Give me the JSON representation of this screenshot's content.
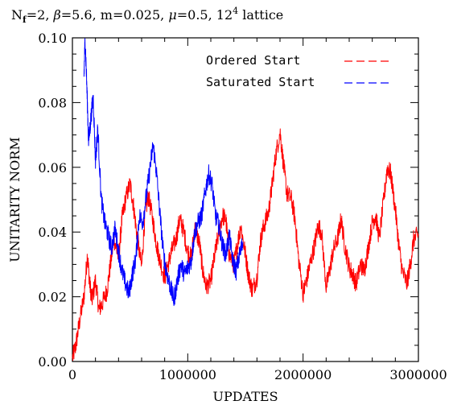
{
  "chart_data": {
    "type": "line",
    "title_parts": {
      "n": "N",
      "f": "f",
      "rest_before_beta": "=2, ",
      "beta": "β",
      "rest_after_beta": "=5.6, m=0.025, ",
      "mu": "μ",
      "rest_after_mu": "=0.5, 12",
      "power": "4",
      "tail": " lattice"
    },
    "xlabel": "UPDATES",
    "ylabel": "UNITARITY NORM",
    "xlim": [
      0,
      3000000
    ],
    "ylim": [
      0,
      0.1
    ],
    "xticks": [
      0,
      1000000,
      2000000,
      3000000
    ],
    "xtick_labels": [
      "0",
      "1000000",
      "2000000",
      "3000000"
    ],
    "yticks": [
      0,
      0.02,
      0.04,
      0.06,
      0.08,
      0.1
    ],
    "ytick_labels": [
      "0.00",
      "0.02",
      "0.04",
      "0.06",
      "0.08",
      "0.10"
    ],
    "legend_position": "top-right",
    "series": [
      {
        "name": "Ordered Start",
        "color": "#ff0000",
        "x": [
          0,
          30000,
          60000,
          100000,
          130000,
          150000,
          170000,
          200000,
          230000,
          260000,
          300000,
          330000,
          360000,
          400000,
          430000,
          460000,
          500000,
          530000,
          560000,
          600000,
          630000,
          660000,
          700000,
          730000,
          760000,
          800000,
          830000,
          860000,
          900000,
          930000,
          960000,
          1000000,
          1030000,
          1060000,
          1100000,
          1130000,
          1160000,
          1200000,
          1230000,
          1260000,
          1300000,
          1330000,
          1360000,
          1400000,
          1430000,
          1460000,
          1500000,
          1530000,
          1560000,
          1600000,
          1630000,
          1660000,
          1700000,
          1730000,
          1760000,
          1800000,
          1830000,
          1860000,
          1900000,
          1930000,
          1960000,
          2000000,
          2030000,
          2060000,
          2100000,
          2130000,
          2160000,
          2200000,
          2230000,
          2260000,
          2300000,
          2330000,
          2360000,
          2400000,
          2430000,
          2460000,
          2500000,
          2530000,
          2560000,
          2600000,
          2630000,
          2660000,
          2700000,
          2730000,
          2760000,
          2800000,
          2830000,
          2860000,
          2900000,
          2930000,
          2960000,
          3000000
        ],
        "values": [
          0.001,
          0.005,
          0.012,
          0.02,
          0.033,
          0.024,
          0.019,
          0.025,
          0.016,
          0.018,
          0.022,
          0.03,
          0.038,
          0.032,
          0.044,
          0.05,
          0.055,
          0.048,
          0.039,
          0.029,
          0.046,
          0.051,
          0.043,
          0.036,
          0.031,
          0.026,
          0.03,
          0.034,
          0.038,
          0.044,
          0.041,
          0.034,
          0.032,
          0.041,
          0.037,
          0.028,
          0.023,
          0.025,
          0.032,
          0.038,
          0.045,
          0.044,
          0.033,
          0.03,
          0.036,
          0.042,
          0.033,
          0.026,
          0.022,
          0.026,
          0.037,
          0.042,
          0.046,
          0.054,
          0.063,
          0.071,
          0.061,
          0.052,
          0.05,
          0.044,
          0.032,
          0.021,
          0.025,
          0.03,
          0.036,
          0.042,
          0.04,
          0.023,
          0.028,
          0.034,
          0.038,
          0.044,
          0.036,
          0.029,
          0.027,
          0.024,
          0.03,
          0.028,
          0.034,
          0.043,
          0.045,
          0.038,
          0.05,
          0.06,
          0.058,
          0.047,
          0.036,
          0.028,
          0.024,
          0.03,
          0.038,
          0.039
        ]
      },
      {
        "name": "Saturated Start",
        "color": "#0000ff",
        "x": [
          100000,
          110000,
          125000,
          140000,
          160000,
          180000,
          200000,
          220000,
          250000,
          280000,
          310000,
          340000,
          370000,
          400000,
          430000,
          460000,
          490000,
          520000,
          550000,
          580000,
          610000,
          640000,
          670000,
          700000,
          730000,
          760000,
          790000,
          820000,
          850000,
          880000,
          910000,
          940000,
          970000,
          1000000,
          1030000,
          1060000,
          1090000,
          1120000,
          1150000,
          1180000,
          1210000,
          1240000,
          1270000,
          1300000,
          1330000,
          1360000,
          1390000,
          1420000,
          1450000,
          1480000
        ],
        "values": [
          0.088,
          0.1,
          0.085,
          0.068,
          0.075,
          0.082,
          0.062,
          0.072,
          0.05,
          0.043,
          0.039,
          0.035,
          0.041,
          0.034,
          0.028,
          0.024,
          0.021,
          0.027,
          0.032,
          0.045,
          0.043,
          0.051,
          0.059,
          0.067,
          0.058,
          0.045,
          0.033,
          0.027,
          0.023,
          0.019,
          0.025,
          0.03,
          0.027,
          0.029,
          0.031,
          0.04,
          0.043,
          0.045,
          0.052,
          0.058,
          0.055,
          0.045,
          0.042,
          0.036,
          0.033,
          0.039,
          0.031,
          0.028,
          0.033,
          0.037
        ]
      }
    ]
  }
}
